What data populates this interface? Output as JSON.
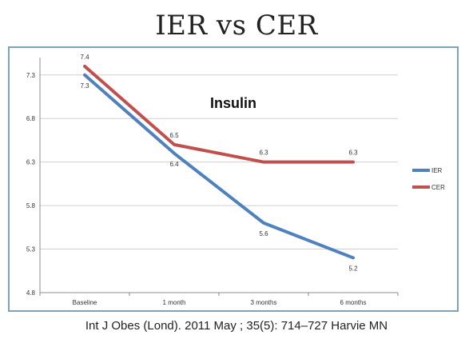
{
  "page": {
    "title": "IER vs CER",
    "citation": "Int J Obes (Lond). 2011 May ; 35(5): 714–727 Harvie MN"
  },
  "chart_data": {
    "type": "line",
    "title": "Insulin",
    "xlabel": "",
    "ylabel": "",
    "categories": [
      "Baseline",
      "1 month",
      "3 months",
      "6 months"
    ],
    "y_ticks": [
      "4.8",
      "5.3",
      "5.8",
      "6.3",
      "6.8",
      "7.3"
    ],
    "ylim": [
      4.8,
      7.5
    ],
    "grid": true,
    "legend_position": "right",
    "series": [
      {
        "name": "IER",
        "color": "#4f81bd",
        "values": [
          7.3,
          6.4,
          5.6,
          5.2
        ],
        "labels": [
          "7.3",
          "6.4",
          "5.6",
          "5.2"
        ]
      },
      {
        "name": "CER",
        "color": "#c0504d",
        "values": [
          7.4,
          6.5,
          6.3,
          6.3
        ],
        "labels": [
          "7.4",
          "6.5",
          "6.3",
          "6.3"
        ]
      }
    ]
  }
}
